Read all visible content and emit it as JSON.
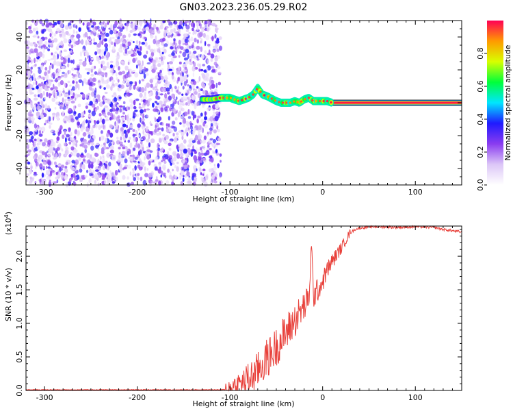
{
  "title": "GN03.2023.236.05.29.R02",
  "chart_data": [
    {
      "type": "heatmap",
      "xlabel": "Height of straight line (km)",
      "ylabel": "Frequency (Hz)",
      "xlim": [
        -320,
        150
      ],
      "ylim": [
        -50,
        50
      ],
      "x_ticks": [
        -300,
        -200,
        -100,
        0,
        100
      ],
      "y_ticks": [
        -40,
        -20,
        0,
        20,
        40
      ],
      "colorbar": {
        "label": "Normalized spectral amplitude",
        "range": [
          0.0,
          1.0
        ],
        "ticks": [
          0.0,
          0.2,
          0.4,
          0.6,
          0.8
        ],
        "stops": [
          "#ffffff",
          "#dcc6f7",
          "#8a3cf0",
          "#1f1aff",
          "#00e6ff",
          "#00ff3a",
          "#d8ff00",
          "#ff9a00",
          "#ff0055"
        ]
      },
      "regions": [
        {
          "x_range": [
            -320,
            -110
          ],
          "freq_range": [
            -50,
            50
          ],
          "amplitude_mean": 0.18
        },
        {
          "x_range": [
            -130,
            10
          ],
          "freq_range": [
            -3,
            10
          ],
          "amplitude_mean": 0.55
        },
        {
          "x_range": [
            0,
            150
          ],
          "freq_range": [
            -1,
            1
          ],
          "amplitude_mean": 0.95
        }
      ],
      "ridge": {
        "x": [
          -130,
          -120,
          -110,
          -100,
          -90,
          -80,
          -75,
          -70,
          -65,
          -60,
          -50,
          -45,
          -40,
          -35,
          -30,
          -25,
          -20,
          -15,
          -10,
          -5,
          0,
          5,
          10,
          150
        ],
        "freq": [
          2,
          2,
          3,
          3,
          1,
          3,
          5,
          9,
          5,
          4,
          1,
          0,
          0,
          0,
          1,
          0,
          2,
          3,
          1,
          1,
          1,
          1,
          0,
          0
        ]
      }
    },
    {
      "type": "line",
      "xlabel": "Height of straight line (km)",
      "ylabel": "SNR (10 * v/v)",
      "y_multiplier": "(x10",
      "y_exponent": "4",
      "y_multiplier_close": ")",
      "xlim": [
        -320,
        150
      ],
      "ylim": [
        0,
        2.45
      ],
      "x_ticks": [
        -300,
        -200,
        -100,
        0,
        100
      ],
      "y_ticks": [
        "0.0",
        "0.5",
        "1.0",
        "1.5",
        "2.0"
      ],
      "color": "#e8403a",
      "series": [
        {
          "x": [
            -320,
            -250,
            -200,
            -150,
            -110,
            -100,
            -95,
            -90,
            -85,
            -80,
            -75,
            -70,
            -65,
            -60,
            -55,
            -50,
            -45,
            -40,
            -35,
            -30,
            -25,
            -20,
            -15,
            -12,
            -10,
            -5,
            0,
            5,
            10,
            15,
            20,
            25,
            30,
            35,
            40,
            50,
            60,
            80,
            100,
            120,
            130,
            140,
            150
          ],
          "y": [
            0.01,
            0.01,
            0.01,
            0.01,
            0.01,
            0.02,
            0.05,
            0.08,
            0.12,
            0.17,
            0.22,
            0.3,
            0.38,
            0.48,
            0.55,
            0.65,
            0.75,
            0.85,
            0.95,
            1.05,
            1.15,
            1.25,
            1.35,
            2.15,
            1.4,
            1.5,
            1.62,
            1.8,
            1.92,
            2.02,
            2.12,
            2.25,
            2.35,
            2.4,
            2.42,
            2.44,
            2.44,
            2.43,
            2.44,
            2.43,
            2.4,
            2.38,
            2.36
          ]
        }
      ]
    }
  ]
}
